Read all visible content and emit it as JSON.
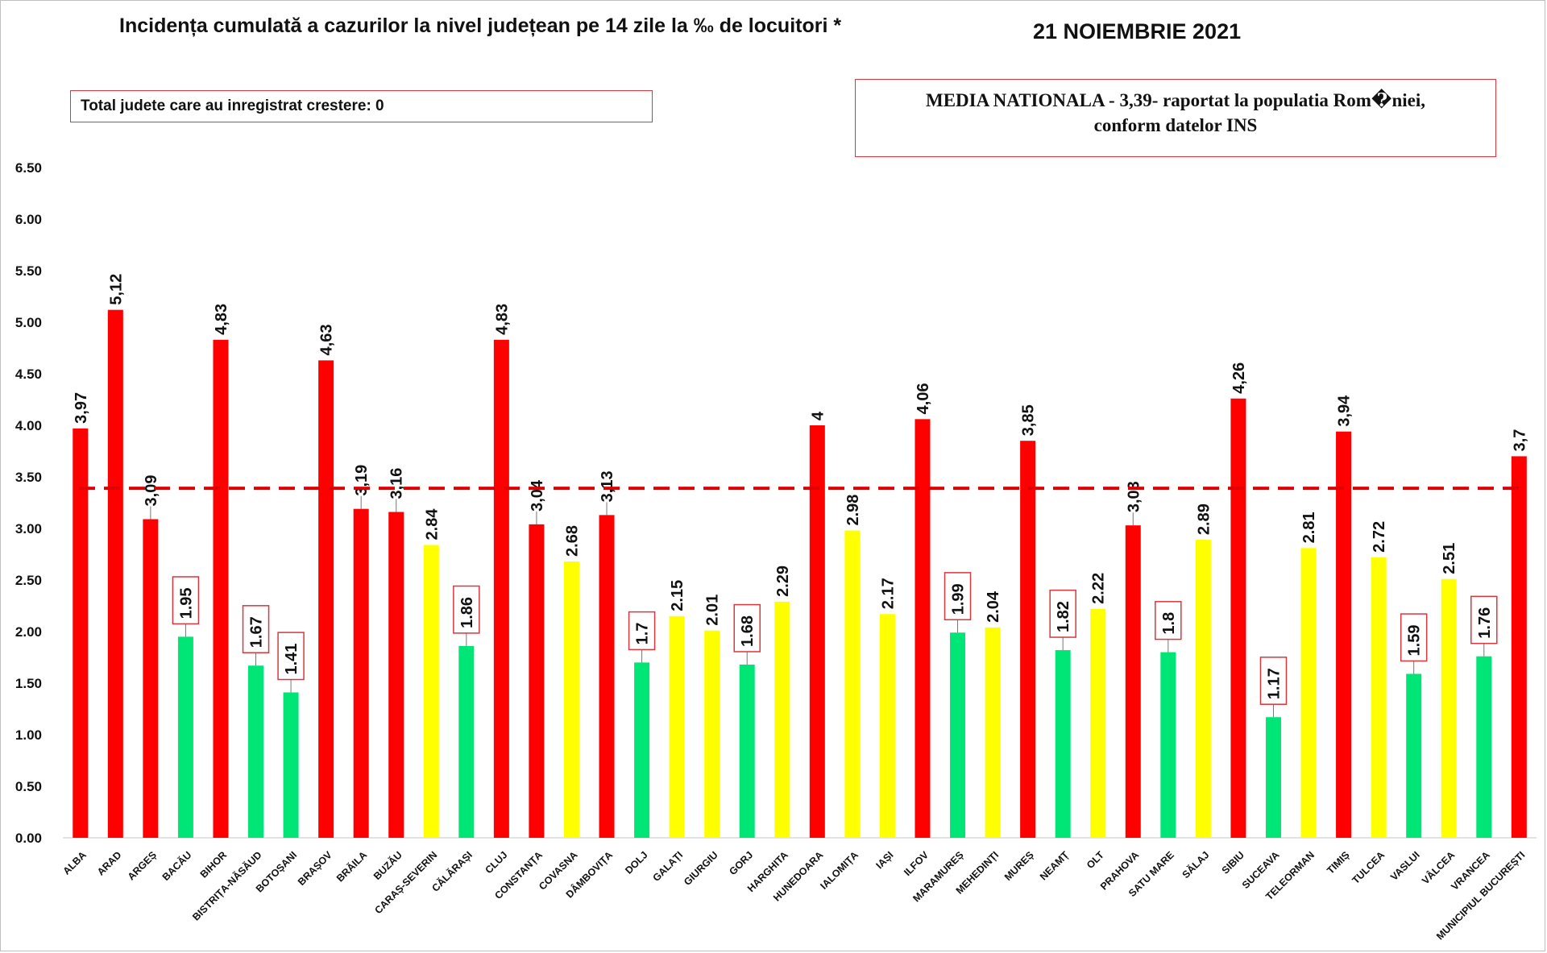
{
  "header": {
    "title": "Incidența cumulată a cazurilor la nivel județean pe 14 zile la ‰ de locuitori *",
    "date": "21 NOIEMBRIE 2021",
    "growth_note": "Total judete care au inregistrat crestere: 0",
    "national_avg_line1": "MEDIA NATIONALA - 3,39-  raportat la populatia Rom�niei,",
    "national_avg_line2": "conform datelor INS"
  },
  "colors": {
    "red": "#ff0000",
    "yellow": "#ffff00",
    "green": "#00e676",
    "avg_line": "#e00000",
    "label_box": "#d9373f"
  },
  "chart_data": {
    "type": "bar",
    "ylim": [
      0,
      6.5
    ],
    "yticks": [
      "0.00",
      "0.50",
      "1.00",
      "1.50",
      "2.00",
      "2.50",
      "3.00",
      "3.50",
      "4.00",
      "4.50",
      "5.00",
      "5.50",
      "6.00",
      "6.50"
    ],
    "average": 3.39,
    "grid": false,
    "categories": [
      "ALBA",
      "ARAD",
      "ARGEȘ",
      "BACĂU",
      "BIHOR",
      "BISTRIȚA-NĂSĂUD",
      "BOTOȘANI",
      "BRAȘOV",
      "BRĂILA",
      "BUZĂU",
      "CARAȘ-SEVERIN",
      "CĂLĂRAȘI",
      "CLUJ",
      "CONSTANȚA",
      "COVASNA",
      "DÂMBOVIȚA",
      "DOLJ",
      "GALAȚI",
      "GIURGIU",
      "GORJ",
      "HARGHITA",
      "HUNEDOARA",
      "IALOMIȚA",
      "IAȘI",
      "ILFOV",
      "MARAMUREȘ",
      "MEHEDINȚI",
      "MUREȘ",
      "NEAMȚ",
      "OLT",
      "PRAHOVA",
      "SATU MARE",
      "SĂLAJ",
      "SIBIU",
      "SUCEAVA",
      "TELEORMAN",
      "TIMIȘ",
      "TULCEA",
      "VASLUI",
      "VÂLCEA",
      "VRANCEA",
      "MUNICIPIUL BUCUREȘTI"
    ],
    "values": [
      3.97,
      5.12,
      3.09,
      1.95,
      4.83,
      1.67,
      1.41,
      4.63,
      3.19,
      3.16,
      2.84,
      1.86,
      4.83,
      3.04,
      2.68,
      3.13,
      1.7,
      2.15,
      2.01,
      1.68,
      2.29,
      4,
      2.98,
      2.17,
      4.06,
      1.99,
      2.04,
      3.85,
      1.82,
      2.22,
      3.03,
      1.8,
      2.89,
      4.26,
      1.17,
      2.81,
      3.94,
      2.72,
      1.59,
      2.51,
      1.76,
      3.7
    ],
    "labels": [
      "3,97",
      "5,12",
      "3,09",
      "1.95",
      "4,83",
      "1.67",
      "1.41",
      "4,63",
      "3,19",
      "3,16",
      "2.84",
      "1.86",
      "4,83",
      "3,04",
      "2.68",
      "3,13",
      "1.7",
      "2.15",
      "2.01",
      "1.68",
      "2.29",
      "4",
      "2.98",
      "2.17",
      "4,06",
      "1.99",
      "2.04",
      "3,85",
      "1.82",
      "2.22",
      "3,03",
      "1.8",
      "2.89",
      "4,26",
      "1.17",
      "2.81",
      "3,94",
      "2.72",
      "1.59",
      "2.51",
      "1.76",
      "3,7"
    ],
    "colors": [
      "red",
      "red",
      "red",
      "green",
      "red",
      "green",
      "green",
      "red",
      "red",
      "red",
      "yellow",
      "green",
      "red",
      "red",
      "yellow",
      "red",
      "green",
      "yellow",
      "yellow",
      "green",
      "yellow",
      "red",
      "yellow",
      "yellow",
      "red",
      "green",
      "yellow",
      "red",
      "green",
      "yellow",
      "red",
      "green",
      "yellow",
      "red",
      "green",
      "yellow",
      "red",
      "yellow",
      "green",
      "yellow",
      "green",
      "red"
    ],
    "boxed": [
      false,
      false,
      false,
      true,
      false,
      true,
      true,
      false,
      false,
      false,
      false,
      true,
      false,
      false,
      false,
      false,
      true,
      false,
      false,
      true,
      false,
      false,
      false,
      false,
      false,
      true,
      false,
      false,
      true,
      false,
      false,
      true,
      false,
      false,
      true,
      false,
      false,
      false,
      true,
      false,
      true,
      false
    ]
  }
}
